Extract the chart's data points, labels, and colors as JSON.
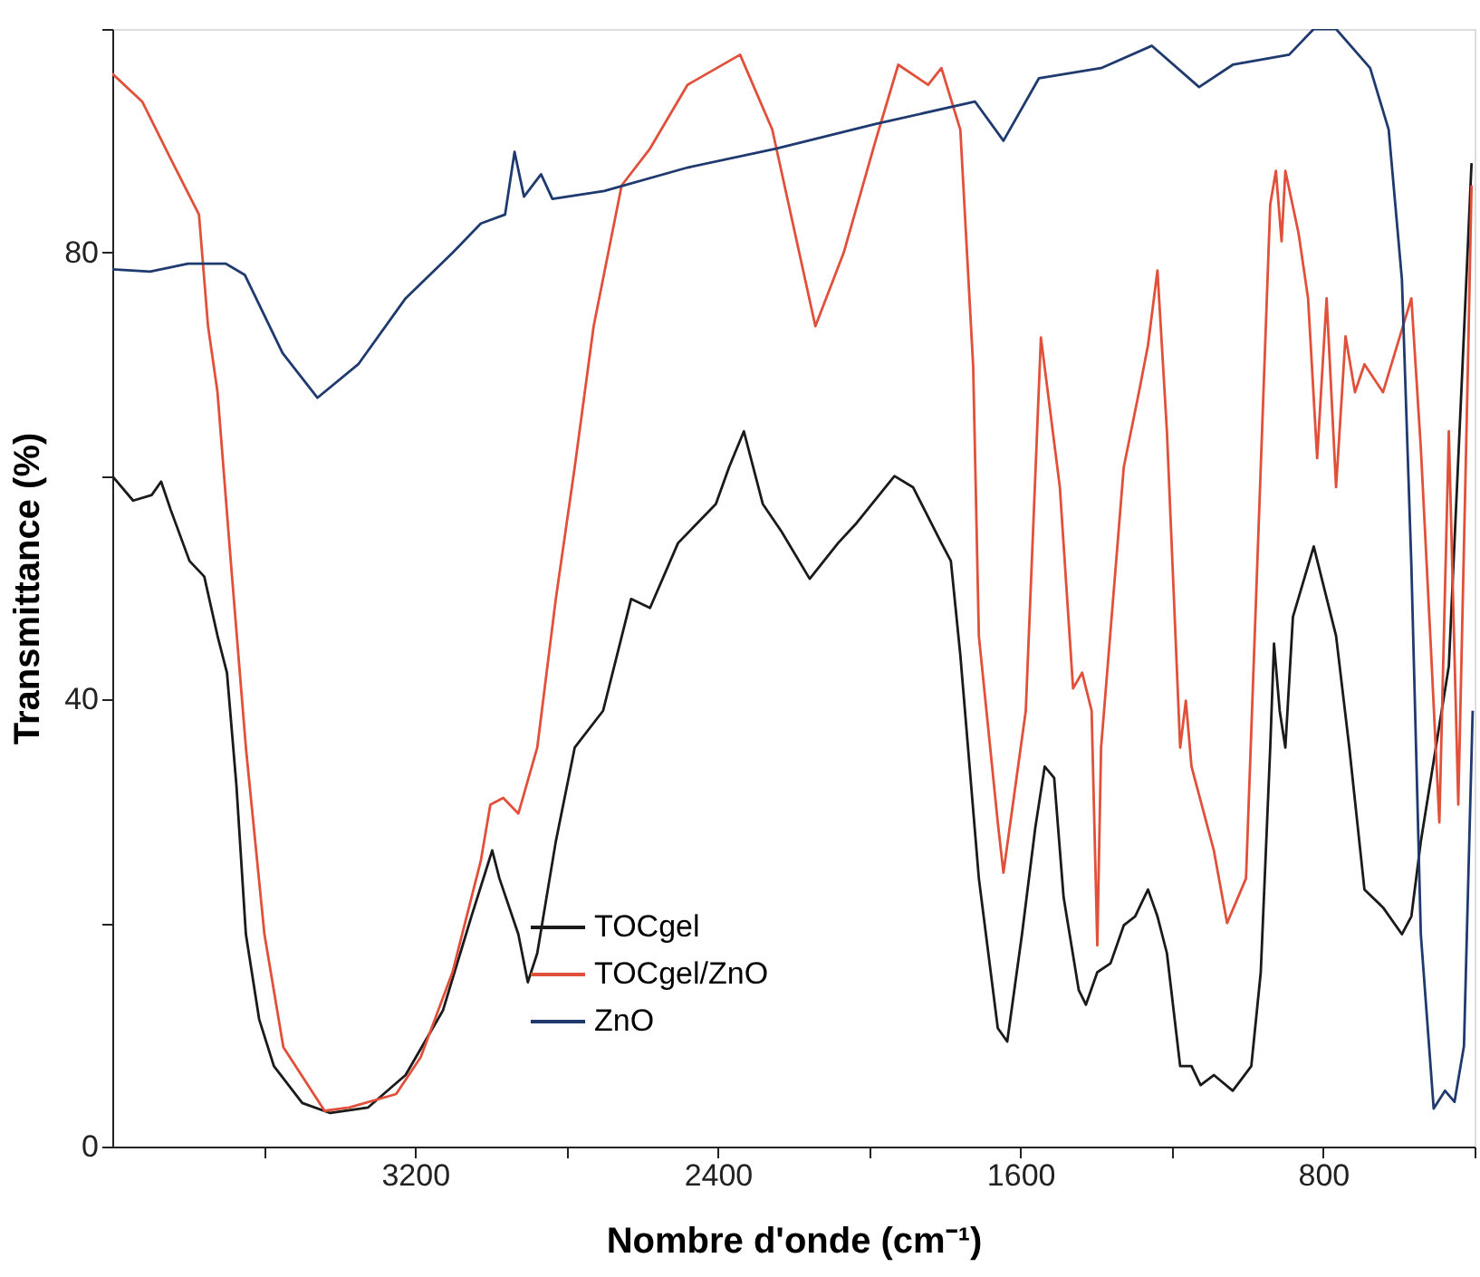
{
  "chart_data": {
    "type": "line",
    "xlabel": "Nombre d'onde (cm⁻¹)",
    "ylabel": "Transmittance (%)",
    "xlim": [
      4000,
      400
    ],
    "ylim": [
      0,
      100
    ],
    "xticks": [
      {
        "value": 3600,
        "label": null
      },
      3200,
      {
        "value": 2800,
        "label": null
      },
      2400,
      {
        "value": 2000,
        "label": null
      },
      1600,
      {
        "value": 1200,
        "label": null
      },
      800,
      {
        "value": 400,
        "label": null
      }
    ],
    "yticks": [
      0,
      {
        "value": 20,
        "label": null
      },
      40,
      {
        "value": 60,
        "label": null
      },
      80,
      {
        "value": 100,
        "label": null
      }
    ],
    "grid": false,
    "legend": "bottom",
    "line_style": "solid",
    "marker": "none",
    "series": [
      {
        "name": "TOCgel",
        "color": "#1a1a1a",
        "x": [
          4000,
          3945,
          3896,
          3871,
          3846,
          3796,
          3757,
          3722,
          3697,
          3672,
          3647,
          3612,
          3573,
          3498,
          3424,
          3324,
          3225,
          3126,
          3051,
          2996,
          2977,
          2927,
          2902,
          2877,
          2828,
          2778,
          2703,
          2629,
          2579,
          2505,
          2405,
          2370,
          2331,
          2281,
          2231,
          2157,
          2082,
          2033,
          1933,
          1884,
          1809,
          1784,
          1759,
          1710,
          1660,
          1635,
          1596,
          1561,
          1536,
          1511,
          1486,
          1446,
          1427,
          1397,
          1362,
          1327,
          1297,
          1263,
          1238,
          1213,
          1178,
          1148,
          1124,
          1089,
          1039,
          990,
          965,
          940,
          930,
          915,
          900,
          880,
          825,
          766,
          731,
          691,
          642,
          592,
          567,
          542,
          468,
          433,
          408
        ],
        "values": [
          60,
          57.8,
          58.3,
          59.5,
          57,
          52.4,
          51,
          45.7,
          42.4,
          32.3,
          19,
          11.4,
          7.2,
          3.9,
          3,
          3.5,
          6.4,
          12.2,
          20.6,
          26.5,
          24,
          19,
          14.7,
          17.3,
          27.3,
          35.7,
          39,
          49,
          48.2,
          54,
          57.5,
          60.8,
          64,
          57.5,
          55,
          50.8,
          54,
          55.8,
          60,
          59,
          54,
          52.4,
          44,
          24,
          10.6,
          9.4,
          19,
          28.5,
          34,
          33,
          22.3,
          14,
          12.7,
          15.6,
          16.4,
          19.8,
          20.6,
          23,
          20.6,
          17.3,
          7.2,
          7.2,
          5.5,
          6.4,
          5,
          7.2,
          15.6,
          35.7,
          45,
          39,
          35.7,
          47.4,
          53.7,
          45.7,
          35.7,
          23,
          21.4,
          19,
          20.6,
          27.3,
          43,
          69,
          88
        ]
      },
      {
        "name": "TOCgel/ZnO",
        "color": "#e0503a",
        "x": [
          4000,
          3921,
          3846,
          3771,
          3747,
          3722,
          3687,
          3647,
          3598,
          3548,
          3439,
          3374,
          3250,
          3185,
          3101,
          3026,
          3001,
          2967,
          2927,
          2877,
          2828,
          2778,
          2728,
          2654,
          2579,
          2480,
          2341,
          2256,
          2142,
          2067,
          1983,
          1923,
          1844,
          1809,
          1759,
          1725,
          1710,
          1660,
          1645,
          1586,
          1546,
          1496,
          1461,
          1437,
          1412,
          1397,
          1387,
          1327,
          1287,
          1263,
          1238,
          1213,
          1178,
          1163,
          1148,
          1089,
          1054,
          1004,
          965,
          940,
          925,
          910,
          900,
          865,
          840,
          816,
          791,
          766,
          741,
          716,
          691,
          642,
          567,
          542,
          517,
          493,
          468,
          443,
          418,
          408
        ],
        "values": [
          96,
          93.5,
          88.4,
          83.4,
          73.4,
          67.5,
          52.4,
          35.7,
          19,
          8.9,
          3.2,
          3.5,
          4.7,
          8,
          15.6,
          25.6,
          30.6,
          31.2,
          29.8,
          35.7,
          49,
          60.8,
          73.4,
          86,
          89.3,
          95,
          97.7,
          91,
          73.4,
          80,
          90,
          96.8,
          95,
          96.5,
          91,
          69.8,
          45.7,
          29,
          24.5,
          39,
          72.4,
          59,
          41,
          42.4,
          39,
          18,
          35.7,
          60.8,
          67.5,
          71.7,
          78.4,
          64,
          35.7,
          39.9,
          34,
          26.5,
          20,
          24,
          60.8,
          84.3,
          87.3,
          81,
          87.3,
          81.7,
          75.9,
          61.6,
          75.9,
          59,
          72.5,
          67.5,
          70,
          67.5,
          75.9,
          62.5,
          45.7,
          29,
          64,
          30.6,
          69.2,
          86
        ]
      },
      {
        "name": "ZnO",
        "color": "#1f3a6e",
        "x": [
          4000,
          3900,
          3800,
          3700,
          3650,
          3550,
          3458,
          3350,
          3225,
          3100,
          3026,
          2962,
          2937,
          2912,
          2867,
          2837,
          2700,
          2480,
          2246,
          1983,
          1720,
          1645,
          1551,
          1387,
          1253,
          1128,
          1039,
          890,
          825,
          766,
          676,
          627,
          592,
          567,
          542,
          508,
          478,
          453,
          428,
          405
        ],
        "values": [
          78.5,
          78.3,
          79,
          79,
          78,
          71,
          67,
          70,
          75.9,
          80,
          82.6,
          83.4,
          89,
          85,
          87,
          84.8,
          85.5,
          87.6,
          89.3,
          91.5,
          93.5,
          90,
          95.6,
          96.5,
          98.5,
          94.8,
          96.8,
          97.7,
          100,
          100,
          96.5,
          91,
          77.6,
          52,
          19,
          3.4,
          5,
          4,
          9,
          39
        ]
      }
    ]
  }
}
